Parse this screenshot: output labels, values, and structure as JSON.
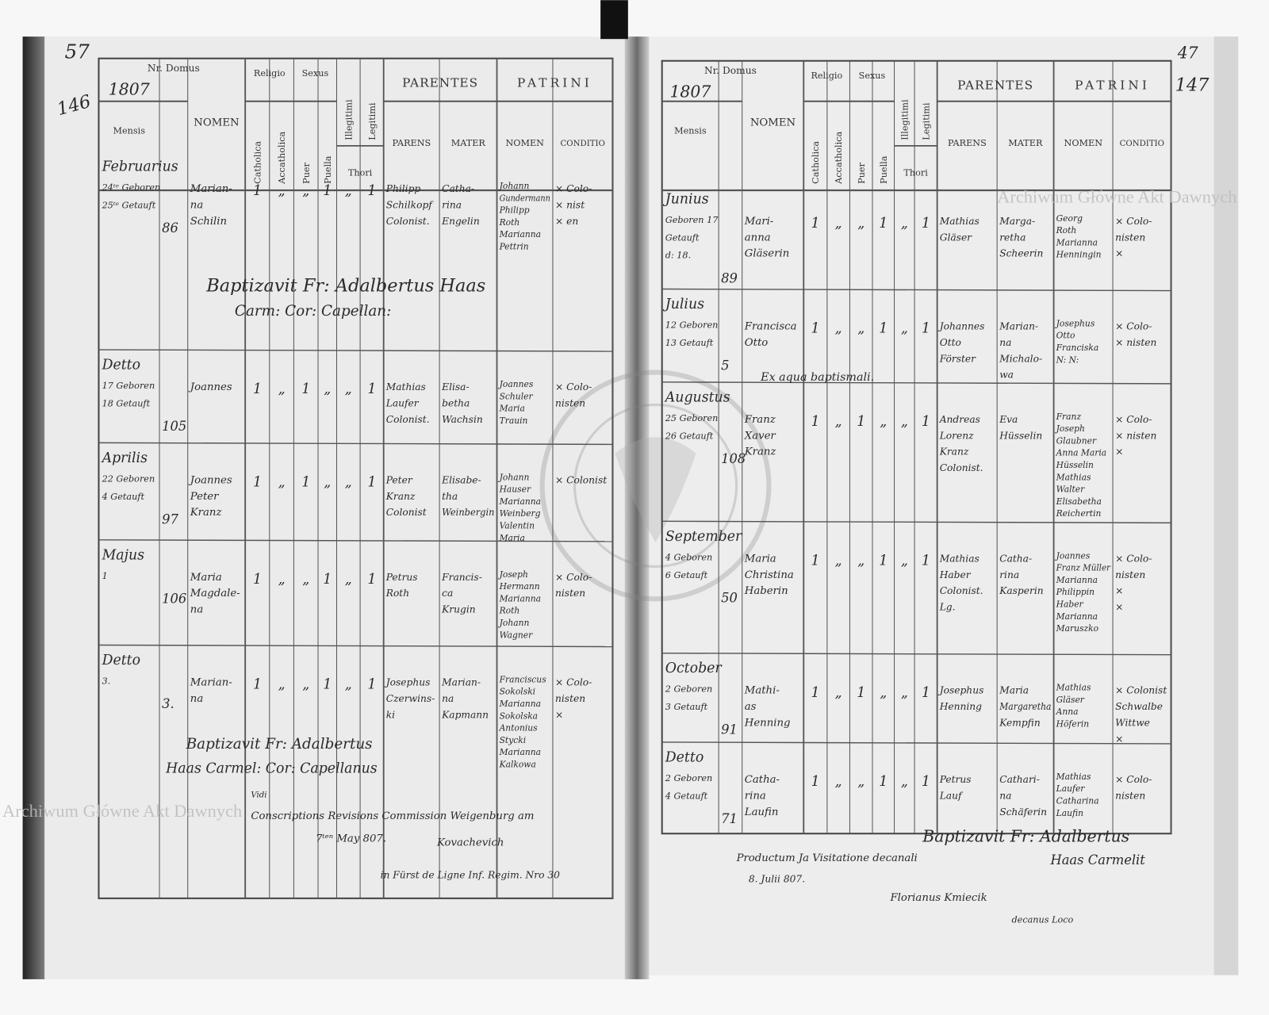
{
  "watermark": "Archiwum Główne Akt Dawnych",
  "stamp_text": "ARCHIWUM GŁÓWNE AKT DAWNYCH",
  "header": {
    "nr_domus": "Nr. Domus",
    "mensis": "Mensis",
    "nomen": "NOMEN",
    "religio": "Religio",
    "sexus": "Sexus",
    "catholica": "Catholica",
    "accatholica": "Accatholica",
    "puer": "Puer",
    "puella": "Puella",
    "illegitimi": "Illegitimi",
    "legitimi": "Legitimi",
    "thori": "Thori",
    "parentes": "PARENTES",
    "patrini": "PATRINI",
    "parens": "PARENS",
    "mater": "MATER",
    "patrini_nomen": "NOMEN",
    "conditio": "CONDITIO"
  },
  "left_page": {
    "year": "1807",
    "folio_crossed": "57",
    "folio": "146",
    "entries": [
      {
        "month": "Februarius",
        "dates": [
          "24ᵗᵉ Geboren",
          "25ᵗᵉ Getauft"
        ],
        "nr": "86",
        "nomen": [
          "Marian-",
          "na",
          "Schilin"
        ],
        "marks": [
          "1",
          "„",
          "„",
          "1",
          "„",
          "1"
        ],
        "parens": [
          "Philipp",
          "Schilkopf",
          "Colonist."
        ],
        "mater": [
          "Catha-",
          "rina",
          "Engelin"
        ],
        "patrini": [
          "Johann",
          "Gundermann",
          "Philipp",
          "Roth",
          "Marianna",
          "Pettrin"
        ],
        "conditio": [
          "× Colo-",
          "× nist",
          "× en"
        ]
      },
      {
        "month": "Detto",
        "dates": [
          "17 Geboren",
          "18 Getauft"
        ],
        "nr": "105",
        "nomen": [
          "Joannes"
        ],
        "marks": [
          "1",
          "„",
          "1",
          "„",
          "„",
          "1"
        ],
        "parens": [
          "Mathias",
          "Laufer",
          "Colonist."
        ],
        "mater": [
          "Elisa-",
          "betha",
          "Wachsin"
        ],
        "patrini": [
          "Joannes",
          "Schuler",
          "Maria",
          "Trauin"
        ],
        "conditio": [
          "× Colo-",
          "nisten"
        ]
      },
      {
        "month": "Aprilis",
        "dates": [
          "22 Geboren",
          "4 Getauft"
        ],
        "nr": "97",
        "nomen": [
          "Joannes",
          "Peter",
          "Kranz"
        ],
        "marks": [
          "1",
          "„",
          "1",
          "„",
          "„",
          "1"
        ],
        "parens": [
          "Peter",
          "Kranz",
          "Colonist"
        ],
        "mater": [
          "Elisabe-",
          "tha",
          "Weinbergin"
        ],
        "patrini": [
          "Johann",
          "Hauser",
          "Marianna",
          "Weinberg",
          "Valentin",
          "Maria"
        ],
        "conditio": [
          "× Colonist"
        ]
      },
      {
        "month": "Majus",
        "dates": [
          "1"
        ],
        "nr": "106",
        "nomen": [
          "Maria",
          "Magdale-",
          "na"
        ],
        "marks": [
          "1",
          "„",
          "„",
          "1",
          "„",
          "1"
        ],
        "parens": [
          "Petrus",
          "Roth"
        ],
        "mater": [
          "Francis-",
          "ca",
          "Krugin"
        ],
        "patrini": [
          "Joseph",
          "Hermann",
          "Marianna",
          "Roth",
          "Johann",
          "Wagner"
        ],
        "conditio": [
          "× Colo-",
          "nisten"
        ]
      },
      {
        "month": "Detto",
        "dates": [
          "3."
        ],
        "nr": "3.",
        "nomen": [
          "Marian-",
          "na"
        ],
        "marks": [
          "1",
          "„",
          "„",
          "1",
          "„",
          "1"
        ],
        "parens": [
          "Josephus",
          "Czerwins-",
          "ki"
        ],
        "mater": [
          "Marian-",
          "na",
          "Kapmann"
        ],
        "patrini": [
          "Franciscus",
          "Sokolski",
          "Marianna",
          "Sokolska",
          "Antonius",
          "Stycki",
          "Marianna",
          "Kalkowa"
        ],
        "conditio": [
          "× Colo-",
          "nisten",
          "×"
        ]
      }
    ],
    "notes": [
      "Baptizavit Fr: Adalbertus Haas",
      "Carm: Cor: Capellan:",
      "Baptizavit Fr: Adalbertus",
      "Haas Carmel: Cor: Capellanus",
      "Vidi",
      "Conscriptions Revisions Commission Weigenburg am",
      "7ᵗᵉⁿ May 807.",
      "Kovachevich",
      "in Fürst de Ligne Inf. Regim. Nro 30"
    ]
  },
  "right_page": {
    "year": "1807",
    "folio_crossed": "47",
    "folio": "147",
    "entries": [
      {
        "month": "Junius",
        "dates": [
          "Geboren 17",
          "Getauft",
          "d: 18."
        ],
        "nr": "89",
        "nomen": [
          "Mari-",
          "anna",
          "Gläserin"
        ],
        "marks": [
          "1",
          "„",
          "„",
          "1",
          "„",
          "1"
        ],
        "parens": [
          "Mathias",
          "Gläser"
        ],
        "mater": [
          "Marga-",
          "retha",
          "Scheerin"
        ],
        "patrini": [
          "Georg",
          "Roth",
          "Marianna",
          "Henningin"
        ],
        "conditio": [
          "× Colo-",
          "nisten",
          "×"
        ]
      },
      {
        "month": "Julius",
        "dates": [
          "12 Geboren",
          "13 Getauft"
        ],
        "nr": "5",
        "nomen": [
          "Francisca",
          "Otto"
        ],
        "marks": [
          "1",
          "„",
          "„",
          "1",
          "„",
          "1"
        ],
        "parens": [
          "Johannes",
          "Otto",
          "Förster"
        ],
        "mater": [
          "Marian-",
          "na",
          "Michalo-",
          "wa"
        ],
        "patrini": [
          "Josephus",
          "Otto",
          "Franciska",
          "N: N:"
        ],
        "conditio": [
          "× Colo-",
          "× nisten"
        ]
      },
      {
        "month": "Augustus",
        "dates": [
          "25 Geboren",
          "26 Getauft"
        ],
        "nr": "108",
        "nomen": [
          "Franz",
          "Xaver",
          "Kranz"
        ],
        "marks": [
          "1",
          "„",
          "1",
          "„",
          "„",
          "1"
        ],
        "parens": [
          "Andreas",
          "Lorenz",
          "Kranz",
          "Colonist."
        ],
        "mater": [
          "Eva",
          "Hüsselin"
        ],
        "patrini": [
          "Franz",
          "Joseph",
          "Glaubner",
          "Anna Maria",
          "Hüsselin",
          "Mathias",
          "Walter",
          "Elisabetha",
          "Reichertin"
        ],
        "conditio": [
          "× Colo-",
          "× nisten",
          "×"
        ]
      },
      {
        "month": "September",
        "dates": [
          "4 Geboren",
          "6 Getauft"
        ],
        "nr": "50",
        "nomen": [
          "Maria",
          "Christina",
          "Haberin"
        ],
        "marks": [
          "1",
          "„",
          "„",
          "1",
          "„",
          "1"
        ],
        "parens": [
          "Mathias",
          "Haber",
          "Colonist.",
          "Lg."
        ],
        "mater": [
          "Catha-",
          "rina",
          "Kasperin"
        ],
        "patrini": [
          "Joannes",
          "Franz Müller",
          "Marianna",
          "Philippin",
          "Haber",
          "Marianna",
          "Maruszko"
        ],
        "conditio": [
          "× Colo-",
          "nisten",
          "×",
          "×"
        ]
      },
      {
        "month": "October",
        "dates": [
          "2 Geboren",
          "3 Getauft"
        ],
        "nr": "91",
        "nomen": [
          "Mathi-",
          "as",
          "Henning"
        ],
        "marks": [
          "1",
          "„",
          "1",
          "„",
          "„",
          "1"
        ],
        "parens": [
          "Josephus",
          "Henning"
        ],
        "mater": [
          "Maria",
          "Margaretha",
          "Kempfin"
        ],
        "patrini": [
          "Mathias",
          "Gläser",
          "Anna",
          "Höferin"
        ],
        "conditio": [
          "× Colonist",
          "Schwalbe",
          "Wittwe",
          "×"
        ]
      },
      {
        "month": "Detto",
        "dates": [
          "2 Geboren",
          "4 Getauft"
        ],
        "nr": "71",
        "nomen": [
          "Catha-",
          "rina",
          "Laufin"
        ],
        "marks": [
          "1",
          "„",
          "„",
          "1",
          "„",
          "1"
        ],
        "parens": [
          "Petrus",
          "Lauf"
        ],
        "mater": [
          "Cathari-",
          "na",
          "Schäferin"
        ],
        "patrini": [
          "Mathias",
          "Laufer",
          "Catharina",
          "Laufin"
        ],
        "conditio": [
          "× Colo-",
          "nisten"
        ]
      }
    ],
    "notes": [
      "Ex aqua baptismali.",
      "Baptizavit Fr: Adalbertus",
      "Haas Carmelit",
      "Productum Ja Visitatione decanali",
      "8. Julii 807.",
      "Florianus Kmiecik",
      "decanus Loco"
    ]
  }
}
